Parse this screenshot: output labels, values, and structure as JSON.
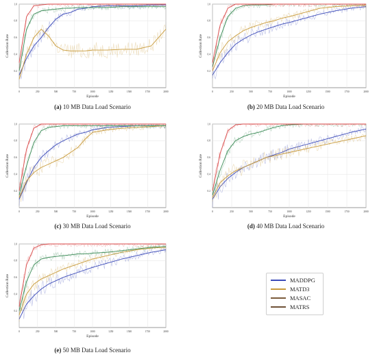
{
  "legend": {
    "entries": [
      {
        "name": "MADDPG",
        "color": "#3b4ab8"
      },
      {
        "name": "MATD3",
        "color": "#c89a3a"
      },
      {
        "name": "MASAC",
        "color": "#7a5a3a"
      },
      {
        "name": "MATRS",
        "color": "#6e5136"
      }
    ]
  },
  "chart_data": [
    {
      "type": "line",
      "caption_label": "(a)",
      "caption_text": " 10 MB Data Load Scenario",
      "xlabel": "Episode",
      "ylabel": "Collection Rate",
      "xlim": [
        0,
        2000
      ],
      "ylim": [
        0.0,
        1.0
      ],
      "xticks": [
        "0",
        "250",
        "500",
        "750",
        "1000",
        "1250",
        "1500",
        "1750",
        "2000"
      ],
      "yticks": [
        "0.2",
        "0.4",
        "0.6",
        "0.8",
        "1.0"
      ],
      "grid": true,
      "series": [
        {
          "color": "#3b4ab8",
          "x": [
            0,
            100,
            200,
            300,
            400,
            500,
            600,
            700,
            800,
            900,
            1000,
            1200,
            1400,
            1600,
            1800,
            2000
          ],
          "y": [
            0.15,
            0.35,
            0.5,
            0.6,
            0.72,
            0.82,
            0.88,
            0.9,
            0.94,
            0.95,
            0.97,
            0.98,
            0.98,
            0.98,
            0.99,
            0.99
          ]
        },
        {
          "color": "#c89a3a",
          "x": [
            0,
            100,
            200,
            300,
            400,
            500,
            600,
            700,
            800,
            900,
            1000,
            1200,
            1400,
            1600,
            1800,
            2000
          ],
          "y": [
            0.1,
            0.4,
            0.6,
            0.7,
            0.62,
            0.5,
            0.45,
            0.44,
            0.44,
            0.44,
            0.45,
            0.45,
            0.46,
            0.46,
            0.5,
            0.7
          ]
        },
        {
          "color": "#3a8a55",
          "x": [
            0,
            100,
            200,
            300,
            400,
            500,
            600,
            700,
            800,
            900,
            1000,
            1200,
            1400,
            1600,
            1800,
            2000
          ],
          "y": [
            0.2,
            0.7,
            0.88,
            0.92,
            0.93,
            0.94,
            0.95,
            0.95,
            0.96,
            0.96,
            0.96,
            0.96,
            0.97,
            0.97,
            0.97,
            0.97
          ]
        },
        {
          "color": "#d94a4a",
          "x": [
            0,
            100,
            200,
            300,
            400,
            500,
            600,
            700,
            800,
            900,
            1000,
            1200,
            1400,
            1600,
            1800,
            2000
          ],
          "y": [
            0.3,
            0.85,
            0.98,
            0.99,
            1.0,
            1.0,
            1.0,
            1.0,
            1.0,
            1.0,
            1.0,
            1.0,
            1.0,
            1.0,
            1.0,
            1.0
          ]
        }
      ]
    },
    {
      "type": "line",
      "caption_label": "(b)",
      "caption_text": " 20 MB Data Load Scenario",
      "xlabel": "Episode",
      "ylabel": "Collection Rate",
      "xlim": [
        0,
        2000
      ],
      "ylim": [
        0.0,
        1.0
      ],
      "xticks": [
        "0",
        "250",
        "500",
        "750",
        "1000",
        "1250",
        "1500",
        "1750",
        "2000"
      ],
      "yticks": [
        "0.2",
        "0.4",
        "0.6",
        "0.8",
        "1.0"
      ],
      "grid": true,
      "series": [
        {
          "color": "#3b4ab8",
          "x": [
            0,
            100,
            200,
            300,
            400,
            500,
            600,
            700,
            800,
            900,
            1000,
            1200,
            1400,
            1600,
            1800,
            2000
          ],
          "y": [
            0.15,
            0.3,
            0.42,
            0.52,
            0.58,
            0.63,
            0.67,
            0.7,
            0.73,
            0.76,
            0.78,
            0.83,
            0.88,
            0.92,
            0.95,
            0.97
          ]
        },
        {
          "color": "#c89a3a",
          "x": [
            0,
            100,
            200,
            300,
            400,
            500,
            600,
            700,
            800,
            900,
            1000,
            1200,
            1400,
            1600,
            1800,
            2000
          ],
          "y": [
            0.2,
            0.42,
            0.55,
            0.62,
            0.68,
            0.72,
            0.75,
            0.78,
            0.8,
            0.83,
            0.85,
            0.9,
            0.95,
            0.97,
            0.98,
            0.99
          ]
        },
        {
          "color": "#3a8a55",
          "x": [
            0,
            100,
            200,
            300,
            400,
            500,
            600,
            700,
            800,
            900,
            1000,
            1200,
            1400,
            1600,
            1800,
            2000
          ],
          "y": [
            0.25,
            0.6,
            0.85,
            0.95,
            0.98,
            0.99,
            0.99,
            0.99,
            1.0,
            1.0,
            1.0,
            1.0,
            1.0,
            1.0,
            1.0,
            1.0
          ]
        },
        {
          "color": "#d94a4a",
          "x": [
            0,
            100,
            200,
            300,
            400,
            500,
            600,
            700,
            800,
            900,
            1000,
            1200,
            1400,
            1600,
            1800,
            2000
          ],
          "y": [
            0.3,
            0.75,
            0.95,
            1.0,
            1.0,
            1.0,
            1.0,
            1.0,
            1.0,
            1.0,
            1.0,
            1.0,
            1.0,
            1.0,
            1.0,
            1.0
          ]
        }
      ]
    },
    {
      "type": "line",
      "caption_label": "(c)",
      "caption_text": " 30 MB Data Load Scenario",
      "xlabel": "Episode",
      "ylabel": "Collection Rate",
      "xlim": [
        0,
        2000
      ],
      "ylim": [
        0.0,
        1.0
      ],
      "xticks": [
        "0",
        "250",
        "500",
        "750",
        "1000",
        "1250",
        "1500",
        "1750",
        "2000"
      ],
      "yticks": [
        "0.2",
        "0.4",
        "0.6",
        "0.8",
        "1.0"
      ],
      "grid": true,
      "series": [
        {
          "color": "#3b4ab8",
          "x": [
            0,
            100,
            200,
            300,
            400,
            500,
            600,
            700,
            800,
            900,
            1000,
            1200,
            1400,
            1600,
            1800,
            2000
          ],
          "y": [
            0.1,
            0.3,
            0.48,
            0.6,
            0.68,
            0.75,
            0.8,
            0.84,
            0.88,
            0.9,
            0.93,
            0.96,
            0.97,
            0.98,
            0.98,
            0.98
          ]
        },
        {
          "color": "#c89a3a",
          "x": [
            0,
            100,
            200,
            300,
            400,
            500,
            600,
            700,
            800,
            900,
            1000,
            1200,
            1400,
            1600,
            1800,
            2000
          ],
          "y": [
            0.12,
            0.32,
            0.42,
            0.48,
            0.52,
            0.56,
            0.6,
            0.66,
            0.72,
            0.82,
            0.9,
            0.93,
            0.95,
            0.96,
            0.97,
            0.98
          ]
        },
        {
          "color": "#3a8a55",
          "x": [
            0,
            100,
            200,
            300,
            400,
            500,
            600,
            700,
            800,
            900,
            1000,
            1200,
            1400,
            1600,
            1800,
            2000
          ],
          "y": [
            0.15,
            0.5,
            0.78,
            0.92,
            0.96,
            0.97,
            0.98,
            0.98,
            0.98,
            0.98,
            0.98,
            0.98,
            0.98,
            0.98,
            0.98,
            0.98
          ]
        },
        {
          "color": "#d94a4a",
          "x": [
            0,
            100,
            200,
            300,
            400,
            500,
            600,
            700,
            800,
            900,
            1000,
            1200,
            1400,
            1600,
            1800,
            2000
          ],
          "y": [
            0.2,
            0.7,
            0.95,
            1.0,
            1.0,
            1.0,
            1.0,
            1.0,
            1.0,
            1.0,
            1.0,
            1.0,
            1.0,
            1.0,
            1.0,
            1.0
          ]
        }
      ]
    },
    {
      "type": "line",
      "caption_label": "(d)",
      "caption_text": " 40 MB Data Load Scenario",
      "xlabel": "Episode",
      "ylabel": "Collection Rate",
      "xlim": [
        0,
        2000
      ],
      "ylim": [
        0.0,
        1.0
      ],
      "xticks": [
        "0",
        "250",
        "500",
        "750",
        "1000",
        "1250",
        "1500",
        "1750",
        "2000"
      ],
      "yticks": [
        "0.2",
        "0.4",
        "0.6",
        "0.8",
        "1.0"
      ],
      "grid": true,
      "series": [
        {
          "color": "#3b4ab8",
          "x": [
            0,
            100,
            200,
            300,
            400,
            500,
            600,
            700,
            800,
            900,
            1000,
            1200,
            1400,
            1600,
            1800,
            2000
          ],
          "y": [
            0.1,
            0.25,
            0.35,
            0.42,
            0.48,
            0.52,
            0.56,
            0.6,
            0.63,
            0.66,
            0.7,
            0.75,
            0.8,
            0.85,
            0.9,
            0.94
          ]
        },
        {
          "color": "#c89a3a",
          "x": [
            0,
            100,
            200,
            300,
            400,
            500,
            600,
            700,
            800,
            900,
            1000,
            1200,
            1400,
            1600,
            1800,
            2000
          ],
          "y": [
            0.12,
            0.3,
            0.38,
            0.44,
            0.48,
            0.52,
            0.56,
            0.6,
            0.62,
            0.64,
            0.66,
            0.7,
            0.74,
            0.78,
            0.82,
            0.86
          ]
        },
        {
          "color": "#3a8a55",
          "x": [
            0,
            100,
            200,
            300,
            400,
            500,
            600,
            700,
            800,
            900,
            1000,
            1200,
            1400,
            1600,
            1800,
            2000
          ],
          "y": [
            0.15,
            0.45,
            0.68,
            0.8,
            0.85,
            0.88,
            0.9,
            0.93,
            0.96,
            0.98,
            0.99,
            1.0,
            1.0,
            1.0,
            1.0,
            1.0
          ]
        },
        {
          "color": "#d94a4a",
          "x": [
            0,
            100,
            200,
            300,
            400,
            500,
            600,
            700,
            800,
            900,
            1000,
            1200,
            1400,
            1600,
            1800,
            2000
          ],
          "y": [
            0.2,
            0.65,
            0.92,
            0.99,
            1.0,
            1.0,
            1.0,
            1.0,
            1.0,
            1.0,
            1.0,
            1.0,
            1.0,
            1.0,
            1.0,
            1.0
          ]
        }
      ]
    },
    {
      "type": "line",
      "caption_label": "(e)",
      "caption_text": " 50 MB Data Load Scenario",
      "xlabel": "Episode",
      "ylabel": "Collection Rate",
      "xlim": [
        0,
        2000
      ],
      "ylim": [
        0.0,
        1.0
      ],
      "xticks": [
        "0",
        "250",
        "500",
        "750",
        "1000",
        "1250",
        "1500",
        "1750",
        "2000"
      ],
      "yticks": [
        "0.2",
        "0.4",
        "0.6",
        "0.8",
        "1.0"
      ],
      "grid": true,
      "series": [
        {
          "color": "#3b4ab8",
          "x": [
            0,
            100,
            200,
            300,
            400,
            500,
            600,
            700,
            800,
            900,
            1000,
            1200,
            1400,
            1600,
            1800,
            2000
          ],
          "y": [
            0.1,
            0.28,
            0.38,
            0.46,
            0.52,
            0.56,
            0.6,
            0.63,
            0.66,
            0.69,
            0.72,
            0.77,
            0.82,
            0.86,
            0.9,
            0.93
          ]
        },
        {
          "color": "#c89a3a",
          "x": [
            0,
            100,
            200,
            300,
            400,
            500,
            600,
            700,
            800,
            900,
            1000,
            1200,
            1400,
            1600,
            1800,
            2000
          ],
          "y": [
            0.15,
            0.4,
            0.52,
            0.58,
            0.62,
            0.66,
            0.7,
            0.73,
            0.76,
            0.79,
            0.82,
            0.86,
            0.9,
            0.93,
            0.95,
            0.96
          ]
        },
        {
          "color": "#3a8a55",
          "x": [
            0,
            100,
            200,
            300,
            400,
            500,
            600,
            700,
            800,
            900,
            1000,
            1200,
            1400,
            1600,
            1800,
            2000
          ],
          "y": [
            0.2,
            0.55,
            0.75,
            0.82,
            0.84,
            0.85,
            0.86,
            0.87,
            0.88,
            0.88,
            0.89,
            0.9,
            0.92,
            0.94,
            0.96,
            0.97
          ]
        },
        {
          "color": "#d94a4a",
          "x": [
            0,
            100,
            200,
            300,
            400,
            500,
            600,
            700,
            800,
            900,
            1000,
            1200,
            1400,
            1600,
            1800,
            2000
          ],
          "y": [
            0.25,
            0.75,
            0.95,
            0.99,
            1.0,
            1.0,
            1.0,
            1.0,
            1.0,
            1.0,
            1.0,
            1.0,
            1.0,
            1.0,
            1.0,
            1.0
          ]
        }
      ]
    }
  ]
}
